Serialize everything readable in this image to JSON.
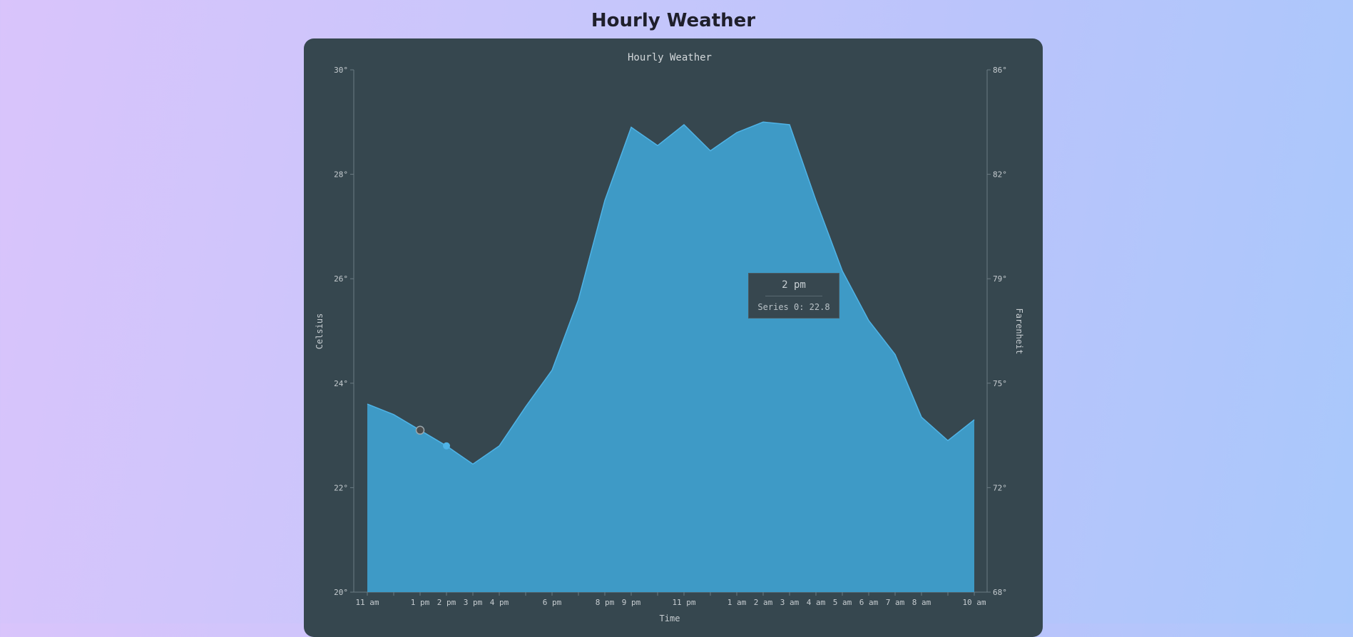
{
  "page": {
    "title": "Hourly Weather"
  },
  "tooltip": {
    "time": "2 pm",
    "series_label": "Series 0: 22.8"
  },
  "colors": {
    "area_fill": "#3e9ac6",
    "area_line": "#4fb3e6",
    "card_bg": "#36474f",
    "axis": "#6b7b83",
    "hover_point": "#4fb3e6",
    "marker_point": "#4c4c4c"
  },
  "chart_data": {
    "type": "area",
    "title": "Hourly Weather",
    "xlabel": "Time",
    "ylabel": "Celsius",
    "y2label": "Farenheit",
    "ylim": [
      20,
      30
    ],
    "y2lim": [
      68,
      86
    ],
    "yticks": [
      "20°",
      "22°",
      "24°",
      "26°",
      "28°",
      "30°"
    ],
    "y2ticks": [
      "68°",
      "72°",
      "75°",
      "79°",
      "82°",
      "86°"
    ],
    "xtick_labels": [
      "11 am",
      "1 pm",
      "2 pm",
      "3 pm",
      "4 pm",
      "6 pm",
      "8 pm",
      "9 pm",
      "11 pm",
      "1 am",
      "2 am",
      "3 am",
      "4 am",
      "5 am",
      "6 am",
      "7 am",
      "8 am",
      "10 am"
    ],
    "xtick_positions": [
      0,
      2,
      3,
      4,
      5,
      7,
      9,
      10,
      12,
      14,
      15,
      16,
      17,
      18,
      19,
      20,
      21,
      23
    ],
    "series": [
      {
        "name": "Series 0",
        "values": [
          23.6,
          23.4,
          23.1,
          22.8,
          22.45,
          22.8,
          23.55,
          24.25,
          25.6,
          27.5,
          28.9,
          28.55,
          28.95,
          28.45,
          28.8,
          29.0,
          28.95,
          27.5,
          26.15,
          25.2,
          24.55,
          23.35,
          22.9,
          23.3
        ]
      }
    ],
    "hover_index": 3,
    "marker_index": 2,
    "legend": "none",
    "grid": false
  }
}
